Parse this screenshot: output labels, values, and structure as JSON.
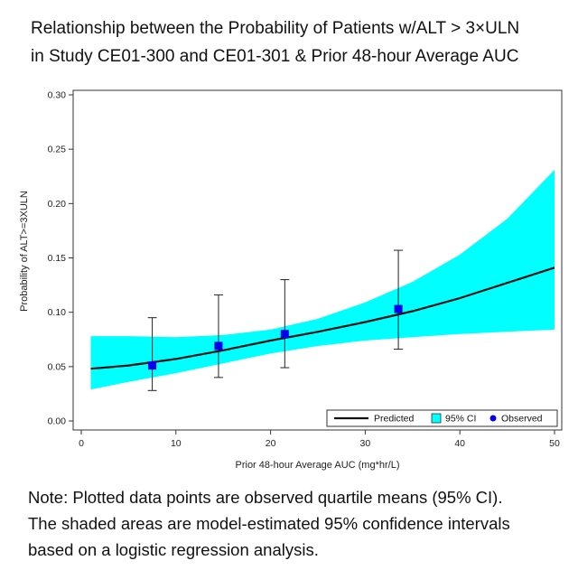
{
  "title_lines": [
    "Relationship between the Probability of Patients w/ALT > 3×ULN",
    "in Study CE01-300 and CE01-301 & Prior 48-hour Average AUC"
  ],
  "note_lines": [
    "Note: Plotted data points are observed quartile means (95% CI).",
    "The shaded areas are model-estimated 95% confidence intervals",
    "based on a logistic regression analysis."
  ],
  "colors": {
    "band": "#00ffff",
    "predicted": "#111111",
    "observed": "#0000ee",
    "errorbar": "#222222"
  },
  "chart_data": {
    "type": "line",
    "xlabel": "Prior 48-hour Average AUC (mg*hr/L)",
    "ylabel": "Probability of ALT>=3XULN",
    "xlim": [
      0,
      50
    ],
    "ylim": [
      0,
      0.3
    ],
    "xticks": [
      0,
      10,
      20,
      30,
      40,
      50
    ],
    "xtick_labels": [
      "0",
      "10",
      "20",
      "30",
      "40",
      "50"
    ],
    "yticks": [
      0,
      0.05,
      0.1,
      0.15,
      0.2,
      0.25,
      0.3
    ],
    "ytick_labels": [
      "0.00",
      "0.05",
      "0.10",
      "0.15",
      "0.20",
      "0.25",
      "0.30"
    ],
    "grid": false,
    "legend_position": "bottom-right",
    "legend": [
      "Predicted",
      "95% CI",
      "Observed"
    ],
    "predicted": {
      "x": [
        1,
        5,
        10,
        15,
        20,
        25,
        30,
        35,
        40,
        45,
        50
      ],
      "y": [
        0.048,
        0.051,
        0.057,
        0.065,
        0.074,
        0.082,
        0.091,
        0.101,
        0.113,
        0.127,
        0.141
      ]
    },
    "ci_band": {
      "x": [
        1,
        5,
        10,
        15,
        20,
        25,
        30,
        35,
        40,
        45,
        50
      ],
      "lower": [
        0.029,
        0.036,
        0.044,
        0.053,
        0.062,
        0.069,
        0.074,
        0.077,
        0.08,
        0.082,
        0.084
      ],
      "upper": [
        0.078,
        0.078,
        0.077,
        0.079,
        0.084,
        0.094,
        0.109,
        0.128,
        0.153,
        0.186,
        0.231
      ]
    },
    "observed": {
      "x": [
        7.5,
        14.5,
        21.5,
        33.5
      ],
      "y": [
        0.051,
        0.069,
        0.08,
        0.103
      ],
      "ci_low": [
        0.028,
        0.04,
        0.049,
        0.066
      ],
      "ci_high": [
        0.095,
        0.116,
        0.13,
        0.157
      ]
    }
  }
}
